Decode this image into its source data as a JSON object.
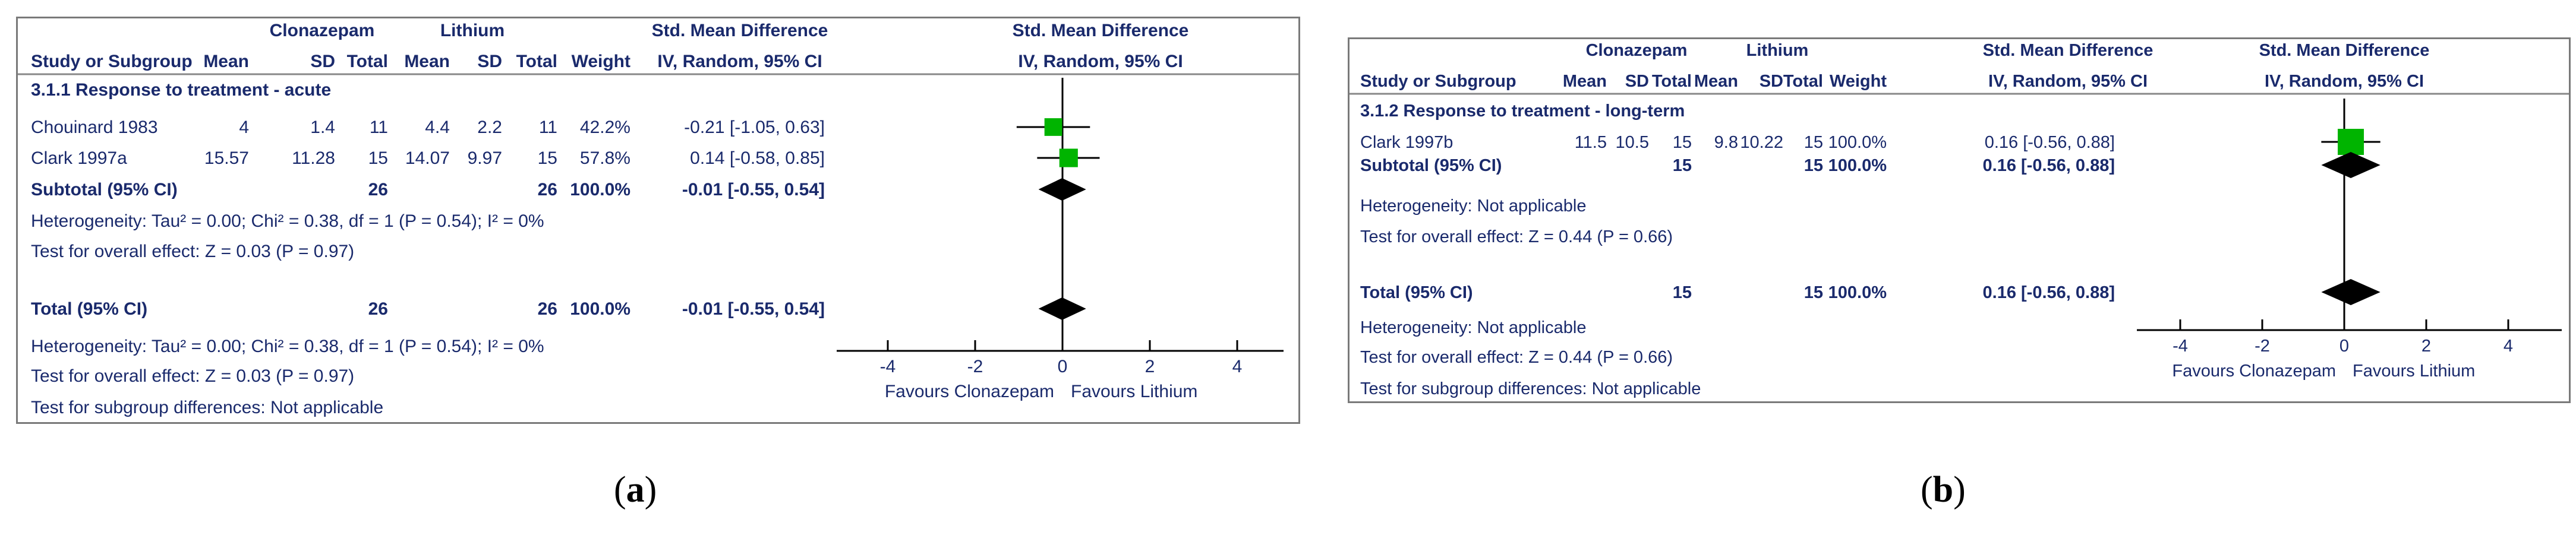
{
  "chart_data": [
    {
      "type": "forest",
      "header": {
        "group1": "Clonazepam",
        "group2": "Lithium",
        "col_study": "Study or Subgroup",
        "col_mean": "Mean",
        "col_sd": "SD",
        "col_total": "Total",
        "col_weight": "Weight",
        "col_effect_title": "Std. Mean Difference",
        "col_effect_method": "IV, Random, 95% CI",
        "plot_title": "Std. Mean Difference",
        "plot_method": "IV, Random, 95% CI"
      },
      "subgroup_title": "3.1.1 Response to treatment - acute",
      "studies": [
        {
          "name": "Chouinard 1983",
          "mean1": "4",
          "sd1": "1.4",
          "n1": "11",
          "mean2": "4.4",
          "sd2": "2.2",
          "n2": "11",
          "weight": "42.2%",
          "ci_text": "-0.21 [-1.05, 0.63]",
          "est": -0.21,
          "lo": -1.05,
          "hi": 0.63,
          "w": 42.2
        },
        {
          "name": "Clark 1997a",
          "mean1": "15.57",
          "sd1": "11.28",
          "n1": "15",
          "mean2": "14.07",
          "sd2": "9.97",
          "n2": "15",
          "weight": "57.8%",
          "ci_text": "0.14 [-0.58, 0.85]",
          "est": 0.14,
          "lo": -0.58,
          "hi": 0.85,
          "w": 57.8
        }
      ],
      "subtotal": {
        "label": "Subtotal (95% CI)",
        "n1": "26",
        "n2": "26",
        "weight": "100.0%",
        "ci_text": "-0.01 [-0.55, 0.54]",
        "est": -0.01,
        "lo": -0.55,
        "hi": 0.54
      },
      "sub_heterogeneity": "Heterogeneity: Tau² = 0.00; Chi² = 0.38, df = 1 (P = 0.54); I² = 0%",
      "sub_overall": "Test for overall effect: Z = 0.03 (P = 0.97)",
      "total": {
        "label": "Total (95% CI)",
        "n1": "26",
        "n2": "26",
        "weight": "100.0%",
        "ci_text": "-0.01 [-0.55, 0.54]",
        "est": -0.01,
        "lo": -0.55,
        "hi": 0.54
      },
      "tot_heterogeneity": "Heterogeneity: Tau² = 0.00; Chi² = 0.38, df = 1 (P = 0.54); I² = 0%",
      "tot_overall": "Test for overall effect: Z = 0.03 (P = 0.97)",
      "subgroup_diff": "Test for subgroup differences: Not applicable",
      "xticks": [
        -4,
        -2,
        0,
        2,
        4
      ],
      "xlim": [
        -4,
        4
      ],
      "favours_left": "Favours Clonazepam",
      "favours_right": "Favours Lithium"
    },
    {
      "type": "forest",
      "header": {
        "group1": "Clonazepam",
        "group2": "Lithium",
        "col_study": "Study or Subgroup",
        "col_mean": "Mean",
        "col_sd": "SD",
        "col_total": "Total",
        "col_weight": "Weight",
        "col_effect_title": "Std. Mean Difference",
        "col_effect_method": "IV, Random, 95% CI",
        "plot_title": "Std. Mean Difference",
        "plot_method": "IV, Random, 95% CI"
      },
      "subgroup_title": "3.1.2 Response to treatment - long-term",
      "studies": [
        {
          "name": "Clark 1997b",
          "mean1": "11.5",
          "sd1": "10.5",
          "n1": "15",
          "mean2": "9.8",
          "sd2": "10.22",
          "n2": "15",
          "weight": "100.0%",
          "ci_text": "0.16 [-0.56, 0.88]",
          "est": 0.16,
          "lo": -0.56,
          "hi": 0.88,
          "w": 100.0
        }
      ],
      "subtotal": {
        "label": "Subtotal (95% CI)",
        "n1": "15",
        "n2": "15",
        "weight": "100.0%",
        "ci_text": "0.16 [-0.56, 0.88]",
        "est": 0.16,
        "lo": -0.56,
        "hi": 0.88
      },
      "sub_heterogeneity": "Heterogeneity: Not applicable",
      "sub_overall": "Test for overall effect: Z = 0.44 (P = 0.66)",
      "total": {
        "label": "Total (95% CI)",
        "n1": "15",
        "n2": "15",
        "weight": "100.0%",
        "ci_text": "0.16 [-0.56, 0.88]",
        "est": 0.16,
        "lo": -0.56,
        "hi": 0.88
      },
      "tot_heterogeneity": "Heterogeneity: Not applicable",
      "tot_overall": "Test for overall effect: Z = 0.44 (P = 0.66)",
      "subgroup_diff": "Test for subgroup differences: Not applicable",
      "xticks": [
        -4,
        -2,
        0,
        2,
        4
      ],
      "xlim": [
        -4,
        4
      ],
      "favours_left": "Favours Clonazepam",
      "favours_right": "Favours Lithium"
    }
  ],
  "captions": {
    "a": "a",
    "b": "b"
  },
  "colors": {
    "text": "#1a2a6c",
    "square": "#00b400",
    "diamond": "#000000",
    "axis": "#000000",
    "border": "#7a7a7a"
  }
}
